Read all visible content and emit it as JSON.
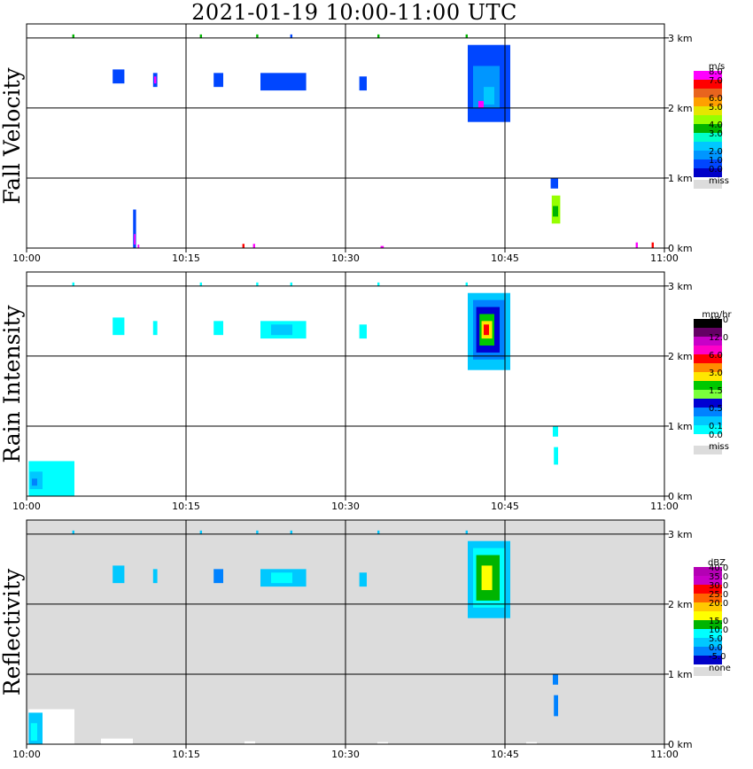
{
  "title": "2021-01-19   10:00-11:00 UTC",
  "chart_data": [
    {
      "type": "heatmap",
      "ylabel": "Fall Velocity",
      "background": "#ffffff",
      "legend_title": "m/s",
      "legend": [
        {
          "label": "8.0",
          "color": "#ff00ff"
        },
        {
          "label": "7.0",
          "color": "#ff0000"
        },
        {
          "label": "",
          "color": "#e8641e"
        },
        {
          "label": "6.0",
          "color": "#ffa000"
        },
        {
          "label": "5.0",
          "color": "#e6e600"
        },
        {
          "label": "",
          "color": "#96ff00"
        },
        {
          "label": "4.0",
          "color": "#00b400"
        },
        {
          "label": "3.0",
          "color": "#00ffc8"
        },
        {
          "label": "",
          "color": "#00c8ff"
        },
        {
          "label": "2.0",
          "color": "#0096ff"
        },
        {
          "label": "1.0",
          "color": "#0046ff"
        },
        {
          "label": "0.0",
          "color": "#0000c8"
        },
        {
          "label": "miss",
          "color": "#dcdcdc"
        }
      ],
      "patches": [
        {
          "x0": 10.02,
          "x1": 10.3,
          "y0": 0.0,
          "y1": 0.55,
          "color": "#0046ff"
        },
        {
          "x0": 10.1,
          "x1": 10.25,
          "y0": 0.05,
          "y1": 0.2,
          "color": "#ff00ff"
        },
        {
          "x0": 10.45,
          "x1": 10.6,
          "y0": 0.0,
          "y1": 0.05,
          "color": "#ff00ff"
        },
        {
          "x0": 8.1,
          "x1": 9.2,
          "y0": 2.35,
          "y1": 2.55,
          "color": "#0046ff"
        },
        {
          "x0": 11.9,
          "x1": 12.3,
          "y0": 2.3,
          "y1": 2.5,
          "color": "#0046ff"
        },
        {
          "x0": 12.0,
          "x1": 12.2,
          "y0": 2.35,
          "y1": 2.45,
          "color": "#ff00ff"
        },
        {
          "x0": 17.6,
          "x1": 18.5,
          "y0": 2.3,
          "y1": 2.5,
          "color": "#0046ff"
        },
        {
          "x0": 22.0,
          "x1": 26.3,
          "y0": 2.25,
          "y1": 2.5,
          "color": "#0046ff"
        },
        {
          "x0": 31.3,
          "x1": 32.0,
          "y0": 2.25,
          "y1": 2.45,
          "color": "#0046ff"
        },
        {
          "x0": 41.5,
          "x1": 45.5,
          "y0": 1.8,
          "y1": 2.9,
          "color": "#0046ff"
        },
        {
          "x0": 42.0,
          "x1": 44.5,
          "y0": 2.0,
          "y1": 2.6,
          "color": "#0096ff"
        },
        {
          "x0": 43.0,
          "x1": 44.0,
          "y0": 2.05,
          "y1": 2.3,
          "color": "#00c8ff"
        },
        {
          "x0": 42.5,
          "x1": 43.0,
          "y0": 2.0,
          "y1": 2.1,
          "color": "#ff00ff"
        },
        {
          "x0": 49.3,
          "x1": 50.0,
          "y0": 0.85,
          "y1": 1.0,
          "color": "#0046ff"
        },
        {
          "x0": 49.4,
          "x1": 50.2,
          "y0": 0.35,
          "y1": 0.75,
          "color": "#96ff00"
        },
        {
          "x0": 49.5,
          "x1": 50.0,
          "y0": 0.45,
          "y1": 0.6,
          "color": "#00b400"
        },
        {
          "x0": 20.3,
          "x1": 20.5,
          "y0": 0.0,
          "y1": 0.06,
          "color": "#ff0000"
        },
        {
          "x0": 21.3,
          "x1": 21.5,
          "y0": 0.0,
          "y1": 0.06,
          "color": "#ff00ff"
        },
        {
          "x0": 33.3,
          "x1": 33.6,
          "y0": 0.0,
          "y1": 0.03,
          "color": "#ff00ff"
        },
        {
          "x0": 57.3,
          "x1": 57.5,
          "y0": 0.0,
          "y1": 0.08,
          "color": "#ff00ff"
        },
        {
          "x0": 58.8,
          "x1": 59.0,
          "y0": 0.0,
          "y1": 0.08,
          "color": "#ff0000"
        },
        {
          "x0": 4.3,
          "x1": 4.5,
          "y0": 3.0,
          "y1": 3.05,
          "color": "#00b400"
        },
        {
          "x0": 16.3,
          "x1": 16.5,
          "y0": 3.0,
          "y1": 3.05,
          "color": "#00b400"
        },
        {
          "x0": 21.6,
          "x1": 21.8,
          "y0": 3.0,
          "y1": 3.05,
          "color": "#00b400"
        },
        {
          "x0": 24.8,
          "x1": 25.0,
          "y0": 3.0,
          "y1": 3.05,
          "color": "#0046ff"
        },
        {
          "x0": 33.0,
          "x1": 33.2,
          "y0": 3.0,
          "y1": 3.05,
          "color": "#00b400"
        },
        {
          "x0": 41.3,
          "x1": 41.5,
          "y0": 3.0,
          "y1": 3.05,
          "color": "#00b400"
        }
      ]
    },
    {
      "type": "heatmap",
      "ylabel": "Rain Intensity",
      "background": "#ffffff",
      "legend_title": "mm/hr",
      "legend": [
        {
          "label": "48.0",
          "color": "#000000"
        },
        {
          "label": "",
          "color": "#640064"
        },
        {
          "label": "12.0",
          "color": "#c800c8"
        },
        {
          "label": "",
          "color": "#ff00c8"
        },
        {
          "label": "6.0",
          "color": "#ff0000"
        },
        {
          "label": "",
          "color": "#ff8c00"
        },
        {
          "label": "3.0",
          "color": "#ffe600"
        },
        {
          "label": "",
          "color": "#00c800"
        },
        {
          "label": "1.5",
          "color": "#7aff3c"
        },
        {
          "label": "",
          "color": "#0000d2"
        },
        {
          "label": "0.5",
          "color": "#0082ff"
        },
        {
          "label": "",
          "color": "#00c8ff"
        },
        {
          "label": "0.1",
          "color": "#00ffff"
        },
        {
          "label": "0.0",
          "color": "#ffffff"
        },
        {
          "label": "miss",
          "color": "#dcdcdc"
        }
      ],
      "patches": [
        {
          "x0": 0.2,
          "x1": 4.5,
          "y0": 0.0,
          "y1": 0.5,
          "color": "#00ffff"
        },
        {
          "x0": 0.3,
          "x1": 1.5,
          "y0": 0.1,
          "y1": 0.35,
          "color": "#00c8ff"
        },
        {
          "x0": 0.5,
          "x1": 1.0,
          "y0": 0.15,
          "y1": 0.25,
          "color": "#0082ff"
        },
        {
          "x0": 8.1,
          "x1": 9.2,
          "y0": 2.3,
          "y1": 2.55,
          "color": "#00ffff"
        },
        {
          "x0": 11.9,
          "x1": 12.3,
          "y0": 2.3,
          "y1": 2.5,
          "color": "#00ffff"
        },
        {
          "x0": 17.6,
          "x1": 18.5,
          "y0": 2.3,
          "y1": 2.5,
          "color": "#00ffff"
        },
        {
          "x0": 22.0,
          "x1": 26.3,
          "y0": 2.25,
          "y1": 2.5,
          "color": "#00ffff"
        },
        {
          "x0": 23.0,
          "x1": 25.0,
          "y0": 2.3,
          "y1": 2.45,
          "color": "#00c8ff"
        },
        {
          "x0": 31.3,
          "x1": 32.0,
          "y0": 2.25,
          "y1": 2.45,
          "color": "#00ffff"
        },
        {
          "x0": 41.5,
          "x1": 45.5,
          "y0": 1.8,
          "y1": 2.9,
          "color": "#00c8ff"
        },
        {
          "x0": 42.0,
          "x1": 45.0,
          "y0": 1.95,
          "y1": 2.8,
          "color": "#0082ff"
        },
        {
          "x0": 42.3,
          "x1": 44.5,
          "y0": 2.05,
          "y1": 2.7,
          "color": "#0000d2"
        },
        {
          "x0": 42.6,
          "x1": 44.0,
          "y0": 2.15,
          "y1": 2.6,
          "color": "#00c800"
        },
        {
          "x0": 42.8,
          "x1": 43.8,
          "y0": 2.25,
          "y1": 2.5,
          "color": "#ffe600"
        },
        {
          "x0": 43.0,
          "x1": 43.5,
          "y0": 2.3,
          "y1": 2.45,
          "color": "#ff0000"
        },
        {
          "x0": 49.5,
          "x1": 50.0,
          "y0": 0.85,
          "y1": 1.0,
          "color": "#00ffff"
        },
        {
          "x0": 49.6,
          "x1": 50.0,
          "y0": 0.45,
          "y1": 0.7,
          "color": "#00ffff"
        },
        {
          "x0": 4.3,
          "x1": 4.5,
          "y0": 3.0,
          "y1": 3.05,
          "color": "#00ffff"
        },
        {
          "x0": 16.3,
          "x1": 16.5,
          "y0": 3.0,
          "y1": 3.05,
          "color": "#00ffff"
        },
        {
          "x0": 21.6,
          "x1": 21.8,
          "y0": 3.0,
          "y1": 3.05,
          "color": "#00ffff"
        },
        {
          "x0": 24.8,
          "x1": 25.0,
          "y0": 3.0,
          "y1": 3.05,
          "color": "#00ffff"
        },
        {
          "x0": 33.0,
          "x1": 33.2,
          "y0": 3.0,
          "y1": 3.05,
          "color": "#00ffff"
        },
        {
          "x0": 41.3,
          "x1": 41.5,
          "y0": 3.0,
          "y1": 3.05,
          "color": "#00ffff"
        }
      ]
    },
    {
      "type": "heatmap",
      "ylabel": "Reflectivity",
      "background": "#dcdcdc",
      "legend_title": "dBZ",
      "legend": [
        {
          "label": "40.0",
          "color": "#b400b4"
        },
        {
          "label": "35.0",
          "color": "#c800c8"
        },
        {
          "label": "30.0",
          "color": "#ff0000"
        },
        {
          "label": "25.0",
          "color": "#ff6400"
        },
        {
          "label": "20.0",
          "color": "#ffc800"
        },
        {
          "label": "",
          "color": "#ffff00"
        },
        {
          "label": "15.0",
          "color": "#00b400"
        },
        {
          "label": "10.0",
          "color": "#00ffff"
        },
        {
          "label": "5.0",
          "color": "#00c8ff"
        },
        {
          "label": "0.0",
          "color": "#0082ff"
        },
        {
          "label": "-5.0",
          "color": "#0000c8"
        },
        {
          "label": "none",
          "color": "#dcdcdc"
        }
      ],
      "patches": [
        {
          "x0": 0.2,
          "x1": 4.5,
          "y0": 0.0,
          "y1": 0.5,
          "color": "#ffffff"
        },
        {
          "x0": 0.2,
          "x1": 1.5,
          "y0": 0.0,
          "y1": 0.45,
          "color": "#00c8ff"
        },
        {
          "x0": 0.4,
          "x1": 1.0,
          "y0": 0.05,
          "y1": 0.3,
          "color": "#00ffff"
        },
        {
          "x0": 8.1,
          "x1": 9.2,
          "y0": 2.3,
          "y1": 2.55,
          "color": "#00c8ff"
        },
        {
          "x0": 11.9,
          "x1": 12.3,
          "y0": 2.3,
          "y1": 2.5,
          "color": "#00c8ff"
        },
        {
          "x0": 17.6,
          "x1": 18.5,
          "y0": 2.3,
          "y1": 2.5,
          "color": "#0082ff"
        },
        {
          "x0": 22.0,
          "x1": 26.3,
          "y0": 2.25,
          "y1": 2.5,
          "color": "#00c8ff"
        },
        {
          "x0": 23.0,
          "x1": 25.0,
          "y0": 2.3,
          "y1": 2.45,
          "color": "#00ffff"
        },
        {
          "x0": 31.3,
          "x1": 32.0,
          "y0": 2.25,
          "y1": 2.45,
          "color": "#00c8ff"
        },
        {
          "x0": 41.5,
          "x1": 45.5,
          "y0": 1.8,
          "y1": 2.9,
          "color": "#00c8ff"
        },
        {
          "x0": 42.0,
          "x1": 45.0,
          "y0": 1.95,
          "y1": 2.8,
          "color": "#00ffff"
        },
        {
          "x0": 42.3,
          "x1": 44.5,
          "y0": 2.05,
          "y1": 2.7,
          "color": "#00b400"
        },
        {
          "x0": 42.8,
          "x1": 43.8,
          "y0": 2.2,
          "y1": 2.55,
          "color": "#ffff00"
        },
        {
          "x0": 49.5,
          "x1": 50.0,
          "y0": 0.85,
          "y1": 1.0,
          "color": "#0082ff"
        },
        {
          "x0": 49.6,
          "x1": 50.0,
          "y0": 0.4,
          "y1": 0.7,
          "color": "#0082ff"
        },
        {
          "x0": 7.0,
          "x1": 10.0,
          "y0": 0.0,
          "y1": 0.08,
          "color": "#ffffff"
        },
        {
          "x0": 20.5,
          "x1": 21.5,
          "y0": 0.0,
          "y1": 0.04,
          "color": "#ffffff"
        },
        {
          "x0": 33.0,
          "x1": 34.0,
          "y0": 0.0,
          "y1": 0.03,
          "color": "#ffffff"
        },
        {
          "x0": 47.0,
          "x1": 48.0,
          "y0": 0.0,
          "y1": 0.03,
          "color": "#ffffff"
        },
        {
          "x0": 4.3,
          "x1": 4.5,
          "y0": 3.0,
          "y1": 3.05,
          "color": "#00c8ff"
        },
        {
          "x0": 16.3,
          "x1": 16.5,
          "y0": 3.0,
          "y1": 3.05,
          "color": "#00c8ff"
        },
        {
          "x0": 21.6,
          "x1": 21.8,
          "y0": 3.0,
          "y1": 3.05,
          "color": "#00c8ff"
        },
        {
          "x0": 24.8,
          "x1": 25.0,
          "y0": 3.0,
          "y1": 3.05,
          "color": "#00c8ff"
        },
        {
          "x0": 33.0,
          "x1": 33.2,
          "y0": 3.0,
          "y1": 3.05,
          "color": "#00c8ff"
        },
        {
          "x0": 41.3,
          "x1": 41.5,
          "y0": 3.0,
          "y1": 3.05,
          "color": "#00c8ff"
        }
      ]
    }
  ],
  "x_axis": {
    "range_minutes": [
      0,
      60
    ],
    "ticks": [
      {
        "value": 0,
        "label": "10:00"
      },
      {
        "value": 15,
        "label": "10:15"
      },
      {
        "value": 30,
        "label": "10:30"
      },
      {
        "value": 45,
        "label": "10:45"
      },
      {
        "value": 60,
        "label": "11:00"
      }
    ]
  },
  "y_axis": {
    "range_km": [
      0,
      3.2
    ],
    "ticks": [
      {
        "value": 0,
        "label": "0 km"
      },
      {
        "value": 1,
        "label": "1 km"
      },
      {
        "value": 2,
        "label": "2 km"
      },
      {
        "value": 3,
        "label": "3 km"
      }
    ]
  }
}
